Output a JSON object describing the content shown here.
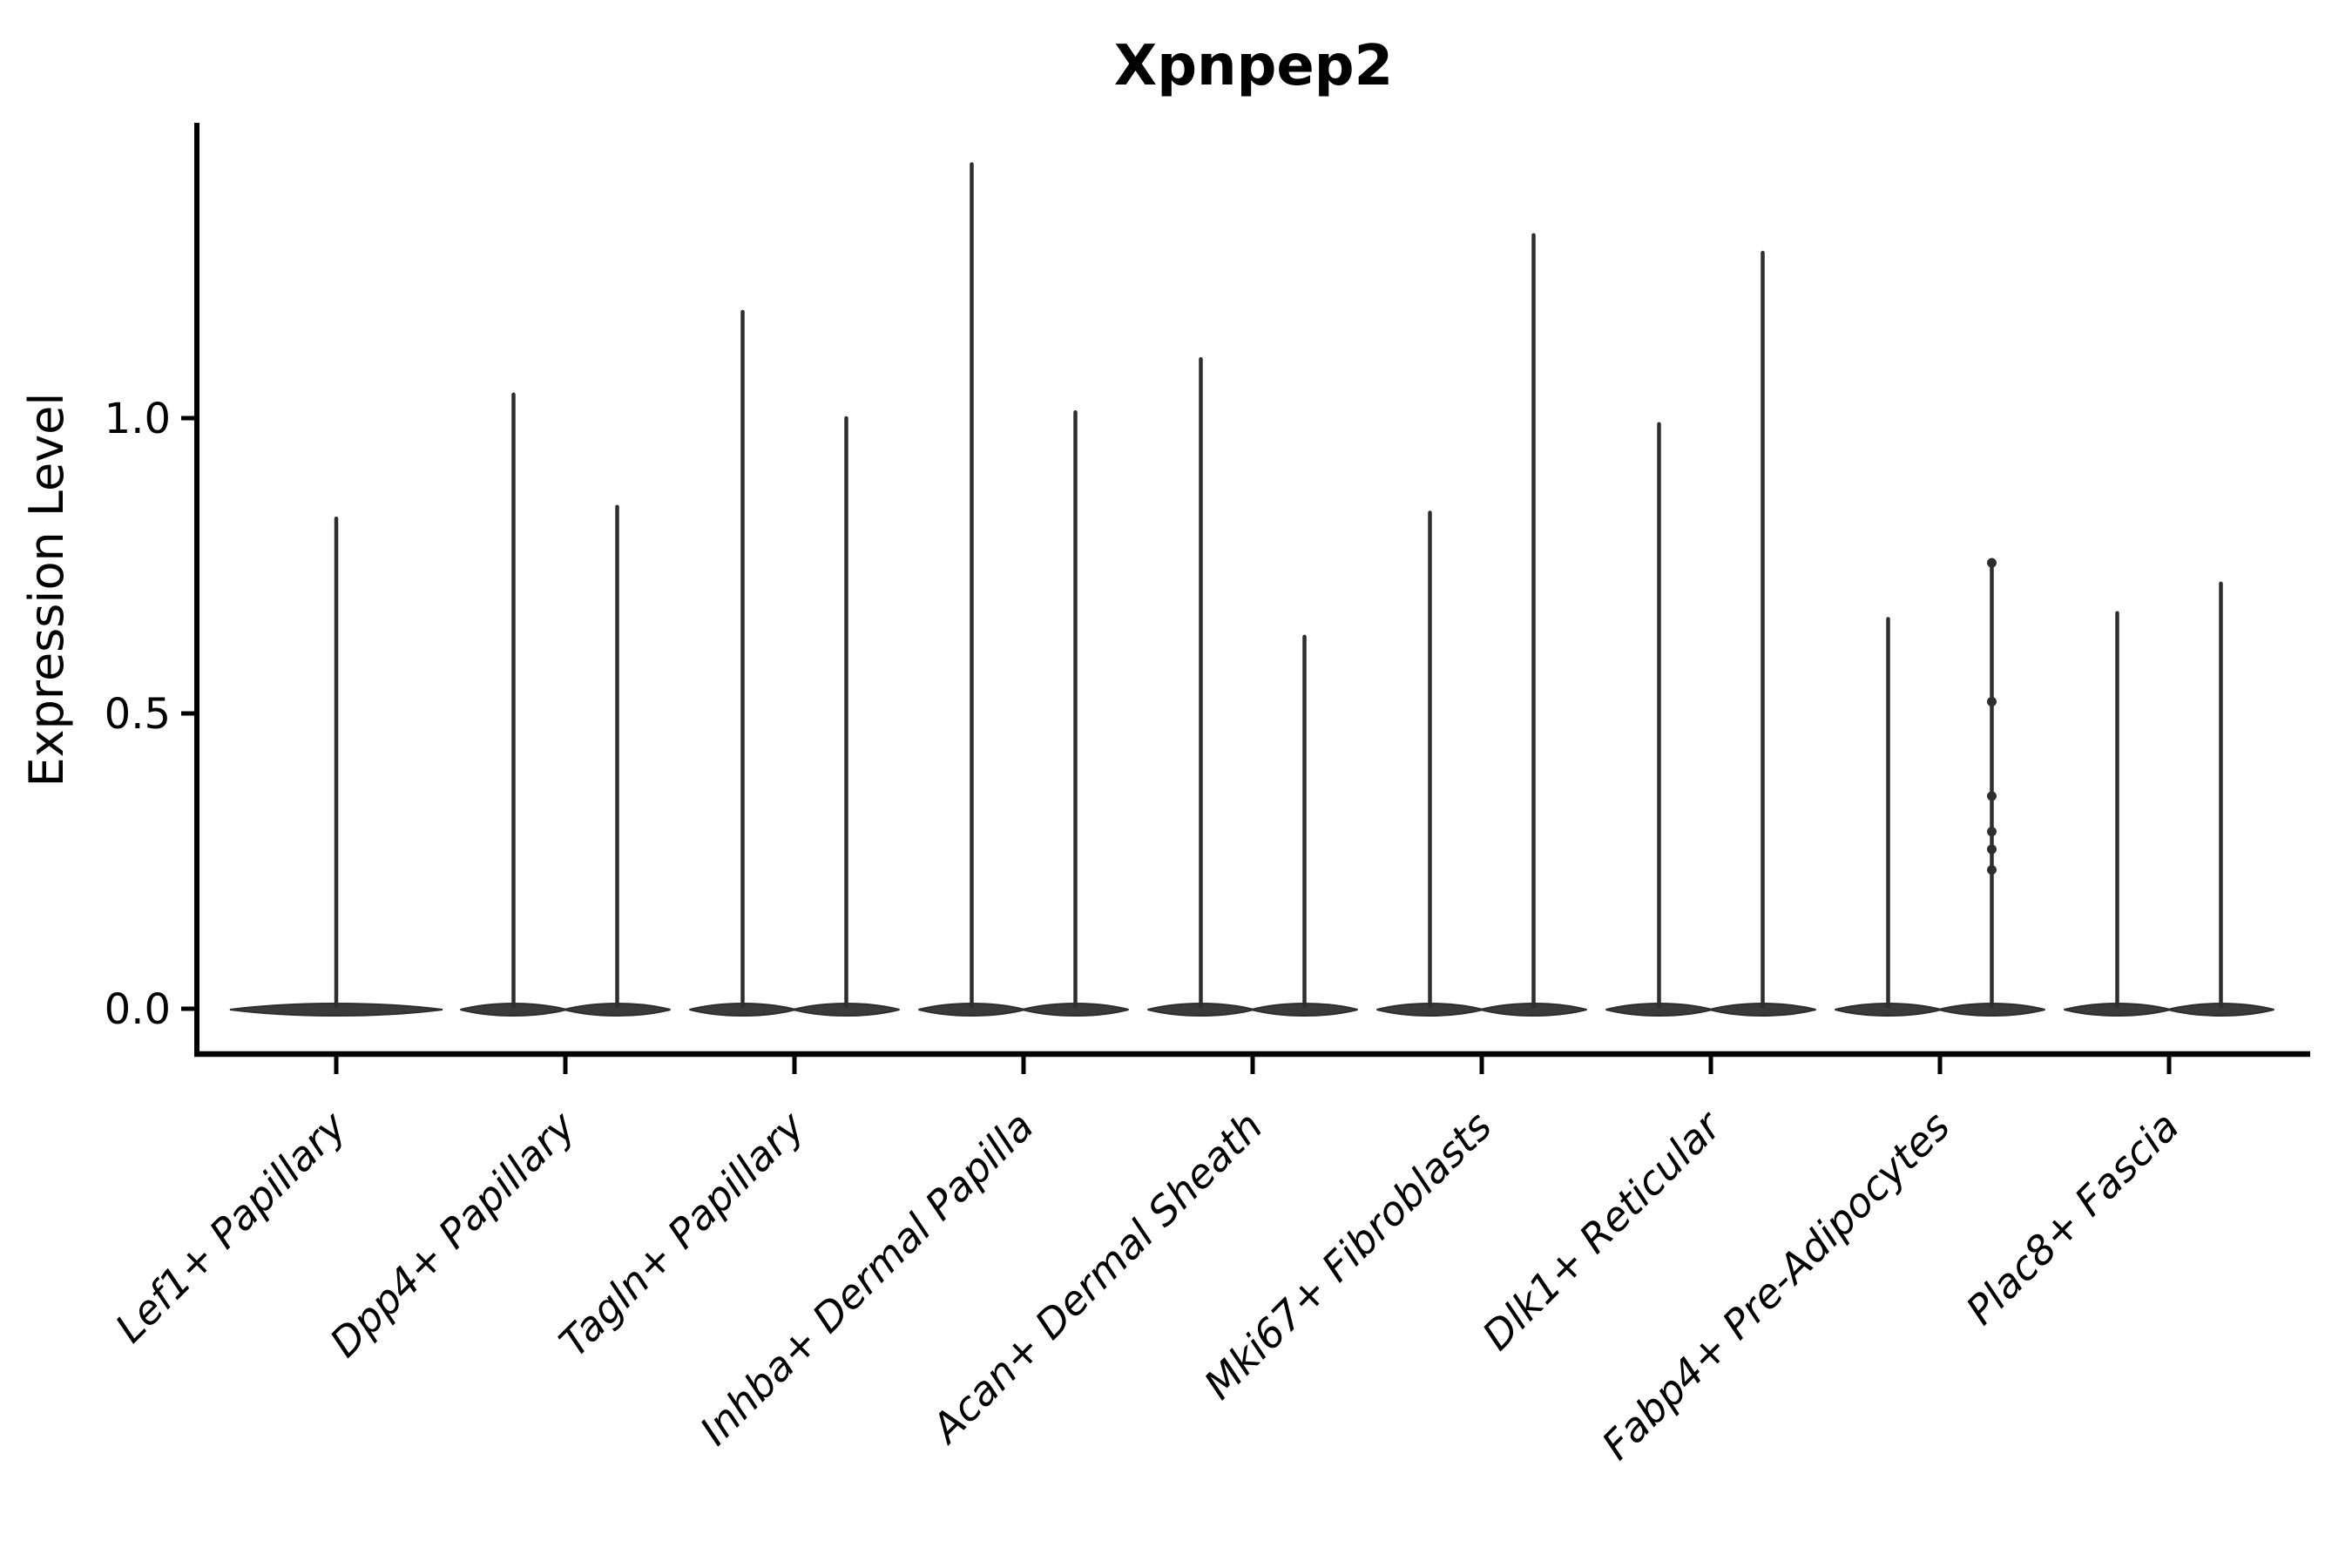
{
  "chart_data": {
    "type": "violin",
    "title": "Xpnpep2",
    "xlabel": "",
    "ylabel": "Expression Level",
    "yticks": [
      0.0,
      0.5,
      1.0
    ],
    "ylim": [
      0,
      1.5
    ],
    "grid": false,
    "legend": false,
    "violin_fill": "#3a3a3a",
    "violin_stroke": "#2e2e2e",
    "axis_color": "#000000",
    "categories": [
      "Lef1+ Papillary",
      "Dpp4+ Papillary",
      "Tagln+ Papillary",
      "Inhba+ Dermal Papilla",
      "Acan+ Dermal Sheath",
      "Mki67+ Fibroblasts",
      "Dlk1+ Reticular",
      "Fabp4+ Pre-Adipocytes",
      "Plac8+ Fascia"
    ],
    "groups": [
      {
        "label": "Lef1+ Papillary",
        "violins": [
          {
            "max_expression": 0.83,
            "width": "full",
            "points": []
          }
        ]
      },
      {
        "label": "Dpp4+ Papillary",
        "violins": [
          {
            "max_expression": 1.04,
            "points": []
          },
          {
            "max_expression": 0.85,
            "points": []
          }
        ]
      },
      {
        "label": "Tagln+ Papillary",
        "violins": [
          {
            "max_expression": 1.18,
            "points": []
          },
          {
            "max_expression": 1.0,
            "points": []
          }
        ]
      },
      {
        "label": "Inhba+ Dermal Papilla",
        "violins": [
          {
            "max_expression": 1.43,
            "points": []
          },
          {
            "max_expression": 1.01,
            "points": []
          }
        ]
      },
      {
        "label": "Acan+ Dermal Sheath",
        "violins": [
          {
            "max_expression": 1.1,
            "points": []
          },
          {
            "max_expression": 0.63,
            "points": []
          }
        ]
      },
      {
        "label": "Mki67+ Fibroblasts",
        "violins": [
          {
            "max_expression": 0.84,
            "points": []
          },
          {
            "max_expression": 1.31,
            "points": []
          }
        ]
      },
      {
        "label": "Dlk1+ Reticular",
        "violins": [
          {
            "max_expression": 0.99,
            "points": []
          },
          {
            "max_expression": 1.28,
            "points": []
          }
        ]
      },
      {
        "label": "Fabp4+ Pre-Adipocytes",
        "violins": [
          {
            "max_expression": 0.66,
            "points": []
          },
          {
            "max_expression": 0.76,
            "points": [
              0.755,
              0.52,
              0.36,
              0.3,
              0.27,
              0.235
            ]
          }
        ]
      },
      {
        "label": "Plac8+ Fascia",
        "violins": [
          {
            "max_expression": 0.67,
            "points": []
          },
          {
            "max_expression": 0.72,
            "points": []
          }
        ]
      }
    ],
    "note_bulk_of_density_at_zero": true
  }
}
